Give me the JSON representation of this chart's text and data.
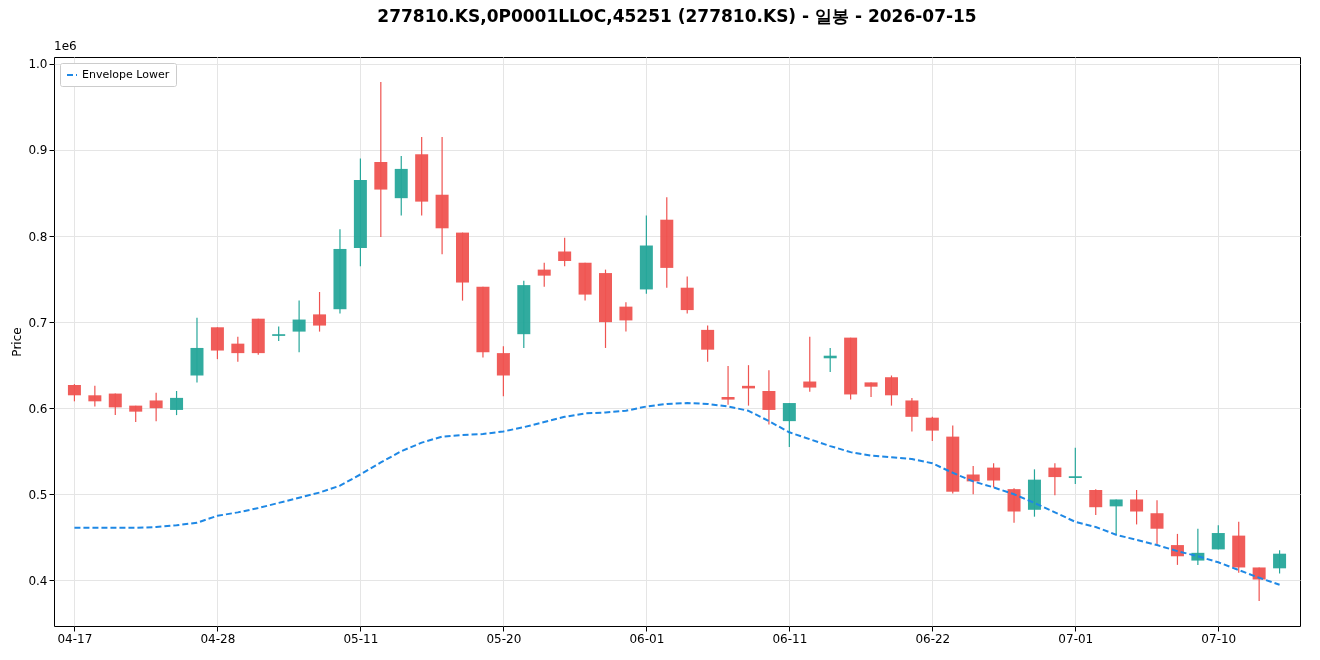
{
  "chart_data": {
    "type": "candlestick",
    "title": "277810.KS,0P0001LLOC,45251 (277810.KS) - 일봉 - 2026-07-15",
    "ylabel": "Price",
    "annotations": [
      "1e6"
    ],
    "categories": [
      "04-17",
      null,
      null,
      null,
      null,
      null,
      null,
      "04-28",
      null,
      null,
      null,
      null,
      null,
      null,
      "05-11",
      null,
      null,
      null,
      null,
      null,
      null,
      "05-20",
      null,
      null,
      null,
      null,
      null,
      null,
      "06-01",
      null,
      null,
      null,
      null,
      null,
      null,
      "06-11",
      null,
      null,
      null,
      null,
      null,
      null,
      "06-22",
      null,
      null,
      null,
      null,
      null,
      null,
      "07-01",
      null,
      null,
      null,
      null,
      null,
      null,
      "07-10",
      null,
      null,
      null
    ],
    "ohlc": [
      [
        0.627,
        0.628,
        0.608,
        0.615
      ],
      [
        0.615,
        0.626,
        0.602,
        0.608
      ],
      [
        0.617,
        0.617,
        0.592,
        0.601
      ],
      [
        0.603,
        0.603,
        0.584,
        0.596
      ],
      [
        0.609,
        0.618,
        0.585,
        0.6
      ],
      [
        0.598,
        0.62,
        0.592,
        0.612
      ],
      [
        0.638,
        0.705,
        0.63,
        0.67
      ],
      [
        0.694,
        0.694,
        0.657,
        0.667
      ],
      [
        0.675,
        0.683,
        0.654,
        0.664
      ],
      [
        0.704,
        0.704,
        0.662,
        0.664
      ],
      [
        0.684,
        0.695,
        0.678,
        0.686
      ],
      [
        0.689,
        0.725,
        0.665,
        0.703
      ],
      [
        0.709,
        0.735,
        0.689,
        0.696
      ],
      [
        0.715,
        0.808,
        0.71,
        0.785
      ],
      [
        0.786,
        0.89,
        0.765,
        0.865
      ],
      [
        0.886,
        0.979,
        0.799,
        0.854
      ],
      [
        0.844,
        0.893,
        0.824,
        0.878
      ],
      [
        0.895,
        0.915,
        0.824,
        0.84
      ],
      [
        0.848,
        0.915,
        0.779,
        0.809
      ],
      [
        0.804,
        0.804,
        0.725,
        0.746
      ],
      [
        0.741,
        0.741,
        0.659,
        0.665
      ],
      [
        0.664,
        0.672,
        0.614,
        0.638
      ],
      [
        0.686,
        0.748,
        0.67,
        0.743
      ],
      [
        0.761,
        0.769,
        0.741,
        0.754
      ],
      [
        0.782,
        0.798,
        0.765,
        0.771
      ],
      [
        0.769,
        0.769,
        0.725,
        0.732
      ],
      [
        0.757,
        0.761,
        0.67,
        0.7
      ],
      [
        0.718,
        0.723,
        0.689,
        0.702
      ],
      [
        0.738,
        0.824,
        0.733,
        0.789
      ],
      [
        0.819,
        0.845,
        0.74,
        0.763
      ],
      [
        0.74,
        0.753,
        0.71,
        0.714
      ],
      [
        0.691,
        0.696,
        0.654,
        0.668
      ],
      [
        0.613,
        0.649,
        0.604,
        0.61
      ],
      [
        0.626,
        0.65,
        0.603,
        0.623
      ],
      [
        0.62,
        0.644,
        0.581,
        0.598
      ],
      [
        0.585,
        0.606,
        0.555,
        0.606
      ],
      [
        0.631,
        0.683,
        0.619,
        0.624
      ],
      [
        0.658,
        0.67,
        0.642,
        0.661
      ],
      [
        0.682,
        0.682,
        0.61,
        0.616
      ],
      [
        0.63,
        0.63,
        0.613,
        0.625
      ],
      [
        0.636,
        0.638,
        0.603,
        0.615
      ],
      [
        0.609,
        0.612,
        0.573,
        0.59
      ],
      [
        0.589,
        0.59,
        0.562,
        0.574
      ],
      [
        0.567,
        0.58,
        0.501,
        0.503
      ],
      [
        0.523,
        0.533,
        0.5,
        0.515
      ],
      [
        0.531,
        0.536,
        0.508,
        0.516
      ],
      [
        0.506,
        0.507,
        0.467,
        0.48
      ],
      [
        0.482,
        0.529,
        0.474,
        0.517
      ],
      [
        0.531,
        0.536,
        0.499,
        0.52
      ],
      [
        0.519,
        0.554,
        0.512,
        0.521
      ],
      [
        0.505,
        0.506,
        0.476,
        0.485
      ],
      [
        0.486,
        0.494,
        0.454,
        0.494
      ],
      [
        0.494,
        0.505,
        0.465,
        0.48
      ],
      [
        0.478,
        0.493,
        0.441,
        0.46
      ],
      [
        0.441,
        0.454,
        0.418,
        0.428
      ],
      [
        0.423,
        0.46,
        0.418,
        0.432
      ],
      [
        0.436,
        0.464,
        0.436,
        0.455
      ],
      [
        0.452,
        0.468,
        0.409,
        0.415
      ],
      [
        0.415,
        0.415,
        0.376,
        0.401
      ],
      [
        0.414,
        0.435,
        0.408,
        0.431
      ]
    ],
    "colors": [
      "#ef5350",
      "#ef5350",
      "#ef5350",
      "#ef5350",
      "#ef5350",
      "#26a69a",
      "#26a69a",
      "#ef5350",
      "#ef5350",
      "#ef5350",
      "#26a69a",
      "#26a69a",
      "#ef5350",
      "#26a69a",
      "#26a69a",
      "#ef5350",
      "#26a69a",
      "#ef5350",
      "#ef5350",
      "#ef5350",
      "#ef5350",
      "#ef5350",
      "#26a69a",
      "#ef5350",
      "#ef5350",
      "#ef5350",
      "#ef5350",
      "#ef5350",
      "#26a69a",
      "#ef5350",
      "#ef5350",
      "#ef5350",
      "#ef5350",
      "#ef5350",
      "#ef5350",
      "#26a69a",
      "#ef5350",
      "#26a69a",
      "#ef5350",
      "#ef5350",
      "#ef5350",
      "#ef5350",
      "#ef5350",
      "#ef5350",
      "#ef5350",
      "#ef5350",
      "#ef5350",
      "#26a69a",
      "#ef5350",
      "#26a69a",
      "#ef5350",
      "#26a69a",
      "#ef5350",
      "#ef5350",
      "#ef5350",
      "#26a69a",
      "#26a69a",
      "#ef5350",
      "#ef5350",
      "#26a69a"
    ],
    "series": [
      {
        "name": "Envelope Lower",
        "type": "line",
        "line_style": "dashed",
        "color": "#1e88e5",
        "values": [
          0.461,
          0.461,
          0.461,
          0.461,
          0.462,
          0.464,
          0.467,
          0.475,
          0.479,
          0.484,
          0.49,
          0.496,
          0.502,
          0.51,
          0.523,
          0.537,
          0.55,
          0.56,
          0.567,
          0.569,
          0.57,
          0.573,
          0.578,
          0.584,
          0.59,
          0.594,
          0.595,
          0.597,
          0.602,
          0.605,
          0.606,
          0.605,
          0.602,
          0.597,
          0.585,
          0.572,
          0.564,
          0.556,
          0.549,
          0.545,
          0.543,
          0.541,
          0.536,
          0.525,
          0.515,
          0.508,
          0.5,
          0.49,
          0.479,
          0.468,
          0.462,
          0.453,
          0.447,
          0.441,
          0.434,
          0.428,
          0.421,
          0.412,
          0.403,
          0.395
        ]
      }
    ],
    "ylim": [
      0.347,
      1.008
    ],
    "yticks": [
      0.4,
      0.5,
      0.6,
      0.7,
      0.8,
      0.9,
      {
        "value": 1.0,
        "label": "1.0"
      }
    ],
    "grid": true,
    "legend": "top left"
  }
}
